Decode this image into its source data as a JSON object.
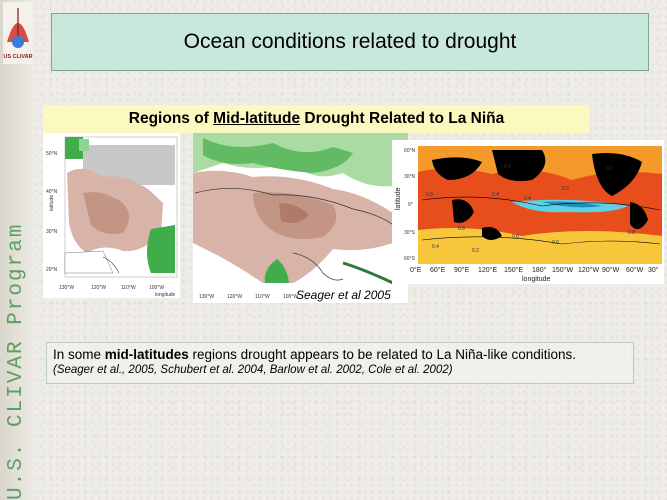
{
  "sidebar": {
    "logo_text": "US CLIVAR",
    "vertical_text": "U.S. CLIVAR Program"
  },
  "header": {
    "title": "Ocean conditions related to drought"
  },
  "subtitle": {
    "prefix": "Regions of ",
    "underlined": "Mid-latitude",
    "suffix": " Drought Related to La Niña"
  },
  "figures": {
    "credit": "Seager et al 2005",
    "map1": {
      "lat_labels": [
        "50°N",
        "40°N",
        "30°N",
        "20°N"
      ],
      "lon_labels": [
        "130°W",
        "120°W",
        "110°W",
        "100°W"
      ],
      "ylabel": "latitude",
      "xlabel": "longitude"
    },
    "map2": {
      "lon_labels": [
        "130°W",
        "120°W",
        "110°W",
        "100°W"
      ]
    },
    "map3": {
      "lat_labels": [
        "60°N",
        "30°N",
        "0°",
        "30°S",
        "60°S"
      ],
      "lon_labels": [
        "0°E",
        "60°E",
        "90°E",
        "120°E",
        "150°E",
        "180°",
        "150°W",
        "120°W",
        "90°W",
        "60°W",
        "30°"
      ],
      "ylabel": "latitude",
      "xlabel": "longitude",
      "contour_labels": [
        "0.4",
        "0.2",
        "0.4",
        "0.6",
        "0.8",
        "0.4",
        "0.2",
        "0.2",
        "0.6",
        "0.8",
        "0.6",
        "0.4"
      ]
    }
  },
  "caption": {
    "line_prefix": "In some ",
    "line_bold": "mid-latitudes",
    "line_suffix": " regions drought appears to be related to La Niña-like conditions.",
    "refs": "(Seager et al., 2005, Schubert et al. 2004, Barlow et al. 2002, Cole et al. 2002)"
  },
  "colors": {
    "accent_green": "#5f9e62",
    "title_bg": "#c9e8dc",
    "subtitle_bg": "#fbf8c0"
  }
}
